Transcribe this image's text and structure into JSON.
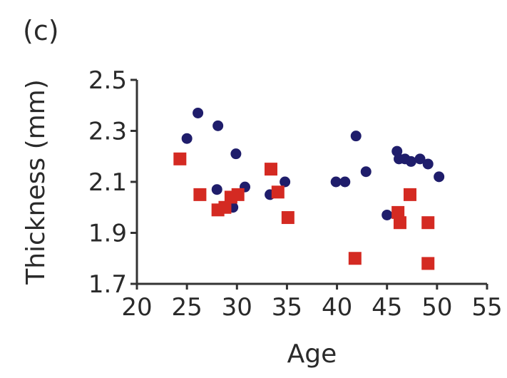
{
  "panel_label": "(c)",
  "colors": {
    "series_circle": "#1f1d6b",
    "series_square": "#d42a22",
    "axis": "#333333",
    "text": "#2a2a2a"
  },
  "chart_data": {
    "type": "scatter",
    "title": "",
    "xlabel": "Age",
    "ylabel": "Thickness (mm)",
    "xlim": [
      20,
      55
    ],
    "ylim": [
      1.7,
      2.5
    ],
    "xticks": [
      20,
      25,
      30,
      35,
      40,
      45,
      50,
      55
    ],
    "yticks": [
      1.7,
      1.9,
      2.1,
      2.3,
      2.5
    ],
    "xtick_labels": [
      "20",
      "25",
      "30",
      "35",
      "40",
      "45",
      "50",
      "55"
    ],
    "ytick_labels": [
      "1.7",
      "1.9",
      "2.1",
      "2.3",
      "2.5"
    ],
    "grid": false,
    "legend": false,
    "series": [
      {
        "marker": "circle",
        "color": "#1f1d6b",
        "points": [
          [
            25,
            2.27
          ],
          [
            26.1,
            2.37
          ],
          [
            28,
            2.07
          ],
          [
            28.1,
            2.32
          ],
          [
            29.6,
            2.0
          ],
          [
            29.9,
            2.21
          ],
          [
            30.8,
            2.08
          ],
          [
            33.3,
            2.05
          ],
          [
            34.8,
            2.1
          ],
          [
            39.9,
            2.1
          ],
          [
            40.8,
            2.1
          ],
          [
            41.9,
            2.28
          ],
          [
            42.9,
            2.14
          ],
          [
            45,
            1.97
          ],
          [
            46,
            2.22
          ],
          [
            46.2,
            2.19
          ],
          [
            46.8,
            2.19
          ],
          [
            47.4,
            2.18
          ],
          [
            48.3,
            2.19
          ],
          [
            49.1,
            2.17
          ],
          [
            50.2,
            2.12
          ]
        ]
      },
      {
        "marker": "square",
        "color": "#d42a22",
        "points": [
          [
            24.3,
            2.19
          ],
          [
            26.3,
            2.05
          ],
          [
            28.1,
            1.99
          ],
          [
            28.8,
            2.0
          ],
          [
            29.4,
            2.04
          ],
          [
            30.1,
            2.05
          ],
          [
            33.4,
            2.15
          ],
          [
            34.1,
            2.06
          ],
          [
            35.1,
            1.96
          ],
          [
            41.8,
            1.8
          ],
          [
            46.1,
            1.98
          ],
          [
            46.3,
            1.94
          ],
          [
            47.3,
            2.05
          ],
          [
            49.1,
            1.94
          ],
          [
            49.1,
            1.78
          ]
        ]
      }
    ]
  }
}
